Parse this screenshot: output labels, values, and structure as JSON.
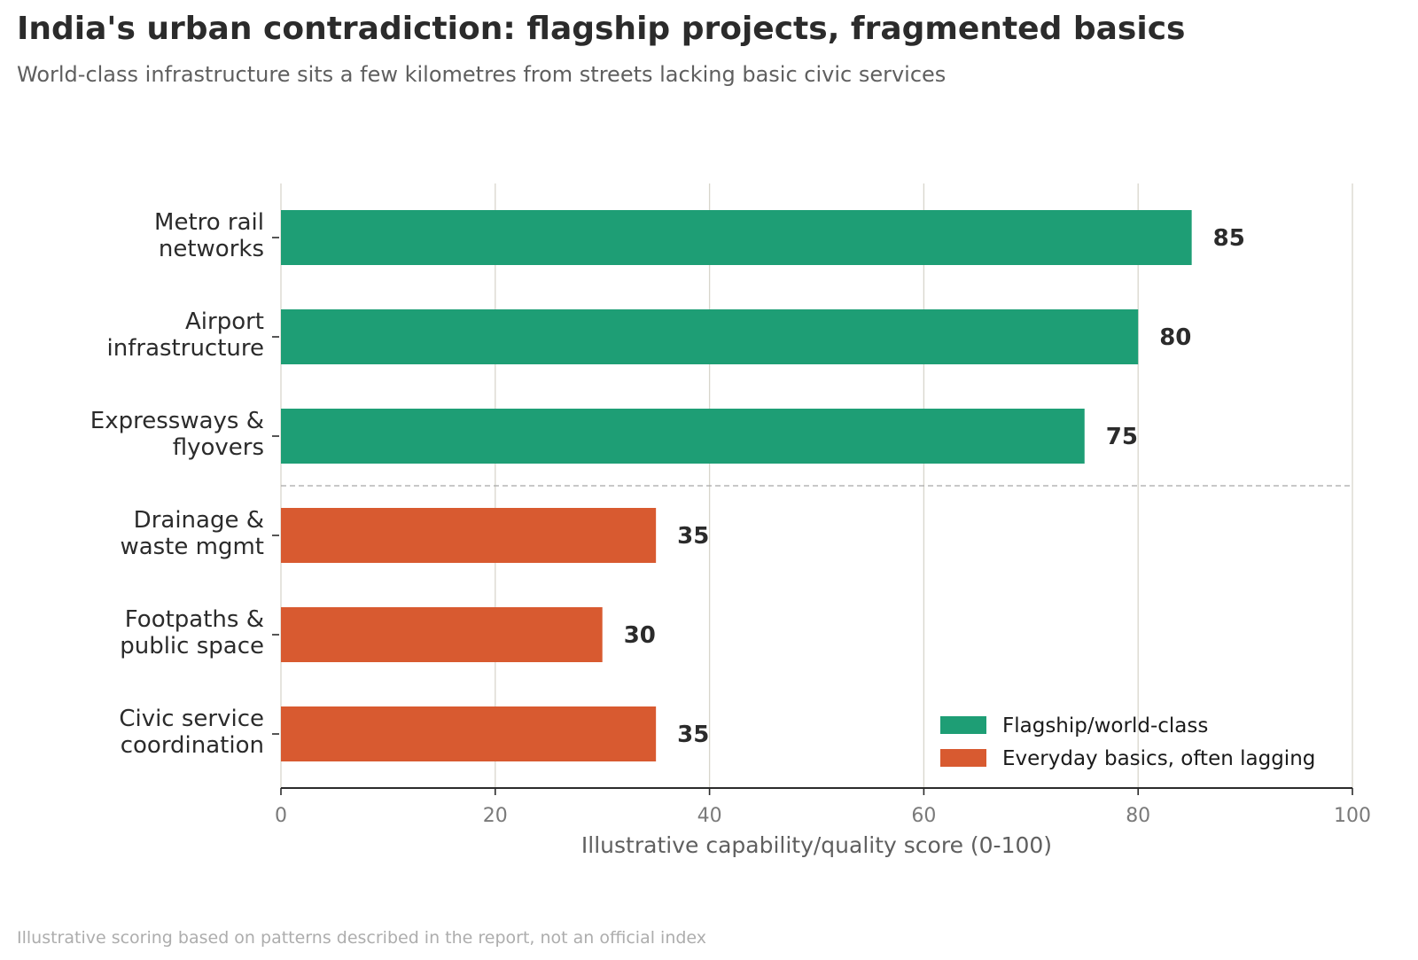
{
  "title": "India's urban contradiction: flagship projects, fragmented basics",
  "subtitle": "World-class infrastructure sits a few kilometres from streets lacking basic civic services",
  "footnote": "Illustrative scoring based on patterns described in the report, not an official index",
  "colors": {
    "flagship": "#1e9e75",
    "basics": "#d85a30",
    "grid": "#d8d6cc",
    "divider": "#a8a8a8",
    "text_dark": "#2b2b2b",
    "text_muted": "#5f5f5f",
    "tick": "#7a7a7a"
  },
  "chart_data": {
    "type": "bar",
    "orientation": "horizontal",
    "categories": [
      [
        "Metro rail",
        "networks"
      ],
      [
        "Airport",
        "infrastructure"
      ],
      [
        "Expressways &",
        "flyovers"
      ],
      [
        "Drainage &",
        "waste mgmt"
      ],
      [
        "Footpaths &",
        "public space"
      ],
      [
        "Civic service",
        "coordination"
      ]
    ],
    "values": [
      85,
      80,
      75,
      35,
      30,
      35
    ],
    "groups": [
      "flagship",
      "flagship",
      "flagship",
      "basics",
      "basics",
      "basics"
    ],
    "data_labels": [
      "85",
      "80",
      "75",
      "35",
      "30",
      "35"
    ],
    "legend": [
      {
        "key": "flagship",
        "label": "Flagship/world-class"
      },
      {
        "key": "basics",
        "label": "Everyday basics, often lagging"
      }
    ],
    "legend_position": "bottom-right",
    "xlabel": "Illustrative capability/quality score (0-100)",
    "xlim": [
      0,
      100
    ],
    "xticks": [
      0,
      20,
      40,
      60,
      80,
      100
    ],
    "xtick_labels": [
      "0",
      "20",
      "40",
      "60",
      "80",
      "100"
    ],
    "grid": "vertical",
    "divider_between": "flagship and basics"
  }
}
